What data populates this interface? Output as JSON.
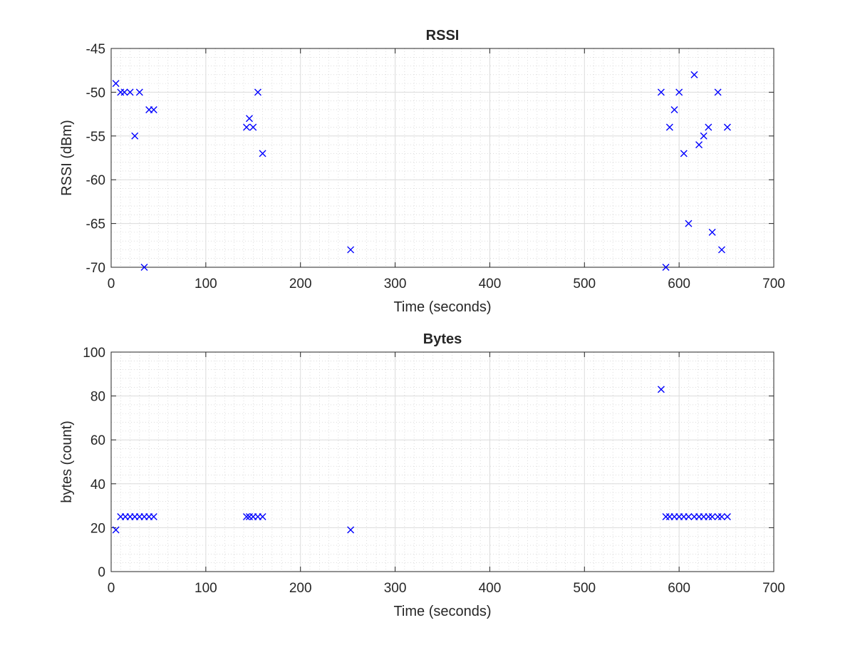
{
  "chart_data": [
    {
      "type": "scatter",
      "title": "RSSI",
      "xlabel": "Time (seconds)",
      "ylabel": "RSSI (dBm)",
      "xlim": [
        0,
        700
      ],
      "ylim": [
        -70,
        -45
      ],
      "xticks": [
        "0",
        "100",
        "200",
        "300",
        "400",
        "500",
        "600",
        "700"
      ],
      "yticks": [
        "-70",
        "-65",
        "-60",
        "-55",
        "-50",
        "-45"
      ],
      "grid": true,
      "minor_grid": true,
      "marker": "x",
      "color": "#0000ff",
      "points": [
        [
          5,
          -49
        ],
        [
          10,
          -50
        ],
        [
          14,
          -50
        ],
        [
          20,
          -50
        ],
        [
          30,
          -50
        ],
        [
          25,
          -55
        ],
        [
          35,
          -70
        ],
        [
          40,
          -52
        ],
        [
          45,
          -52
        ],
        [
          143,
          -54
        ],
        [
          146,
          -53
        ],
        [
          150,
          -54
        ],
        [
          155,
          -50
        ],
        [
          160,
          -57
        ],
        [
          253,
          -68
        ],
        [
          581,
          -50
        ],
        [
          586,
          -70
        ],
        [
          590,
          -54
        ],
        [
          595,
          -52
        ],
        [
          600,
          -50
        ],
        [
          605,
          -57
        ],
        [
          610,
          -65
        ],
        [
          616,
          -48
        ],
        [
          621,
          -56
        ],
        [
          626,
          -55
        ],
        [
          631,
          -54
        ],
        [
          635,
          -66
        ],
        [
          641,
          -50
        ],
        [
          645,
          -68
        ],
        [
          651,
          -54
        ]
      ]
    },
    {
      "type": "scatter",
      "title": "Bytes",
      "xlabel": "Time (seconds)",
      "ylabel": "bytes (count)",
      "xlim": [
        0,
        700
      ],
      "ylim": [
        0,
        100
      ],
      "xticks": [
        "0",
        "100",
        "200",
        "300",
        "400",
        "500",
        "600",
        "700"
      ],
      "yticks": [
        "0",
        "20",
        "40",
        "60",
        "80",
        "100"
      ],
      "grid": true,
      "minor_grid": true,
      "marker": "x",
      "color": "#0000ff",
      "points": [
        [
          5,
          19
        ],
        [
          10,
          25
        ],
        [
          15,
          25
        ],
        [
          20,
          25
        ],
        [
          25,
          25
        ],
        [
          30,
          25
        ],
        [
          35,
          25
        ],
        [
          40,
          25
        ],
        [
          45,
          25
        ],
        [
          143,
          25
        ],
        [
          146,
          25
        ],
        [
          150,
          25
        ],
        [
          155,
          25
        ],
        [
          160,
          25
        ],
        [
          253,
          19
        ],
        [
          581,
          83
        ],
        [
          586,
          25
        ],
        [
          590,
          25
        ],
        [
          595,
          25
        ],
        [
          600,
          25
        ],
        [
          605,
          25
        ],
        [
          610,
          25
        ],
        [
          616,
          25
        ],
        [
          621,
          25
        ],
        [
          626,
          25
        ],
        [
          631,
          25
        ],
        [
          635,
          25
        ],
        [
          641,
          25
        ],
        [
          645,
          25
        ],
        [
          651,
          25
        ]
      ]
    }
  ]
}
